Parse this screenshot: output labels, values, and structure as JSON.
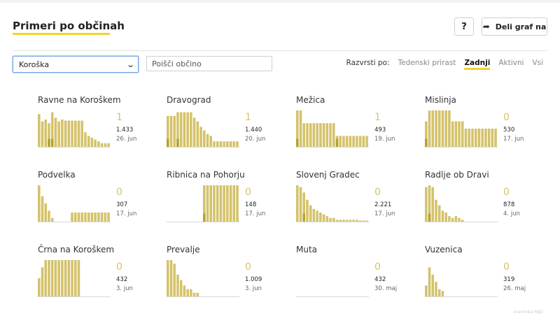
{
  "header": {
    "title": "Primeri po občinah"
  },
  "buttons": {
    "help_label": "?",
    "share_label": "Deli graf na",
    "share_icon": "share-arrow-icon"
  },
  "filters": {
    "region_selected": "Koroška",
    "search_placeholder": "Poišči občino"
  },
  "sort": {
    "label": "Razvrsti po:",
    "options": [
      "Tedenski prirast",
      "Zadnji",
      "Aktivni",
      "Vsi"
    ],
    "active": "Zadnji"
  },
  "colors": {
    "bar": "#d4c26a",
    "bar_dark": "#b5a12a",
    "accent": "#f2d32a",
    "number": "#d9c26a"
  },
  "municipalities": [
    {
      "name": "Ravne na Koroškem",
      "latest": "1",
      "total": "1.433",
      "date": "26. jun",
      "bars": [
        0.9,
        0.7,
        0.75,
        0.65,
        0.95,
        0.8,
        0.7,
        0.75,
        0.72,
        0.72,
        0.72,
        0.72,
        0.72,
        0.72,
        0.4,
        0.3,
        0.25,
        0.2,
        0.15,
        0.1,
        0.1,
        0.1
      ],
      "dark": [
        3,
        4
      ]
    },
    {
      "name": "Dravograd",
      "latest": "1",
      "total": "1.440",
      "date": "20. jun",
      "bars": [
        0.85,
        0.85,
        0.85,
        0.95,
        0.95,
        0.95,
        0.95,
        0.95,
        0.8,
        0.7,
        0.55,
        0.45,
        0.35,
        0.3,
        0.15,
        0.15,
        0.15,
        0.15,
        0.15,
        0.15,
        0.15,
        0.15
      ],
      "dark": [
        0,
        3
      ]
    },
    {
      "name": "Mežica",
      "latest": "1",
      "total": "493",
      "date": "19. jun",
      "bars": [
        1,
        1,
        0.65,
        0.65,
        0.65,
        0.65,
        0.65,
        0.65,
        0.65,
        0.65,
        0.65,
        0.65,
        0.3,
        0.3,
        0.3,
        0.3,
        0.3,
        0.3,
        0.3,
        0.3,
        0.3,
        0.3
      ],
      "dark": [
        0,
        12
      ]
    },
    {
      "name": "Mislinja",
      "latest": "0",
      "total": "530",
      "date": "17. jun",
      "bars": [
        0.7,
        1,
        1,
        1,
        1,
        1,
        1,
        1,
        0.7,
        0.7,
        0.7,
        0.7,
        0.5,
        0.5,
        0.5,
        0.5,
        0.5,
        0.5,
        0.5,
        0.5,
        0.5,
        0.5
      ],
      "dark": [
        0
      ]
    },
    {
      "name": "Podvelka",
      "latest": "0",
      "total": "307",
      "date": "17. jun",
      "bars": [
        1,
        0.7,
        0.5,
        0.3,
        0.1,
        0.0,
        0.0,
        0.0,
        0.0,
        0.0,
        0.25,
        0.25,
        0.25,
        0.25,
        0.25,
        0.25,
        0.25,
        0.25,
        0.25,
        0.25,
        0.25,
        0.25
      ],
      "dark": []
    },
    {
      "name": "Ribnica na Pohorju",
      "latest": "0",
      "total": "148",
      "date": "17. jun",
      "bars": [
        0,
        0,
        0,
        0,
        0,
        0,
        0,
        0,
        0,
        0,
        0,
        1,
        1,
        1,
        1,
        1,
        1,
        1,
        1,
        1,
        1,
        1
      ],
      "dark": [
        11
      ]
    },
    {
      "name": "Slovenj Gradec",
      "latest": "0",
      "total": "2.221",
      "date": "17. jun",
      "bars": [
        1,
        0.95,
        0.8,
        0.6,
        0.45,
        0.35,
        0.3,
        0.25,
        0.2,
        0.15,
        0.1,
        0.1,
        0.05,
        0.05,
        0.05,
        0.05,
        0.05,
        0.05,
        0.05,
        0.03,
        0.03,
        0.03
      ],
      "dark": [
        2
      ]
    },
    {
      "name": "Radlje ob Dravi",
      "latest": "0",
      "total": "878",
      "date": "4. jun",
      "bars": [
        0.95,
        1,
        0.95,
        0.6,
        0.45,
        0.3,
        0.25,
        0.15,
        0.1,
        0.15,
        0.1,
        0.05,
        0.0,
        0.0,
        0.0,
        0.0,
        0.0,
        0.0,
        0.0,
        0.0,
        0.0,
        0.0
      ],
      "dark": [
        1
      ]
    },
    {
      "name": "Črna na Koroškem",
      "latest": "0",
      "total": "432",
      "date": "3. jun",
      "bars": [
        0.5,
        0.8,
        1,
        1,
        1,
        1,
        1,
        1,
        1,
        1,
        1,
        1,
        1,
        0,
        0,
        0,
        0,
        0,
        0,
        0,
        0,
        0
      ],
      "dark": []
    },
    {
      "name": "Prevalje",
      "latest": "0",
      "total": "1.009",
      "date": "3. jun",
      "bars": [
        1,
        1,
        0.9,
        0.6,
        0.45,
        0.3,
        0.2,
        0.2,
        0.1,
        0.1,
        0.0,
        0.0,
        0.0,
        0.0,
        0.0,
        0.0,
        0.0,
        0.0,
        0.0,
        0.0,
        0.0,
        0.0
      ],
      "dark": []
    },
    {
      "name": "Muta",
      "latest": "0",
      "total": "432",
      "date": "30. maj",
      "bars": [
        0,
        0,
        0,
        0,
        0,
        0,
        0,
        0,
        0,
        0,
        0,
        0,
        0,
        0,
        0,
        0,
        0,
        0,
        0,
        0,
        0,
        0
      ],
      "dark": []
    },
    {
      "name": "Vuzenica",
      "latest": "0",
      "total": "319",
      "date": "26. maj",
      "bars": [
        0.3,
        0.8,
        0.6,
        0.4,
        0.2,
        0.15,
        0.0,
        0.0,
        0.0,
        0.0,
        0.0,
        0.0,
        0.0,
        0.0,
        0.0,
        0.0,
        0.0,
        0.0,
        0.0,
        0.0,
        0.0,
        0.0
      ],
      "dark": []
    }
  ],
  "watermark": "ocenlinka NIJZ"
}
